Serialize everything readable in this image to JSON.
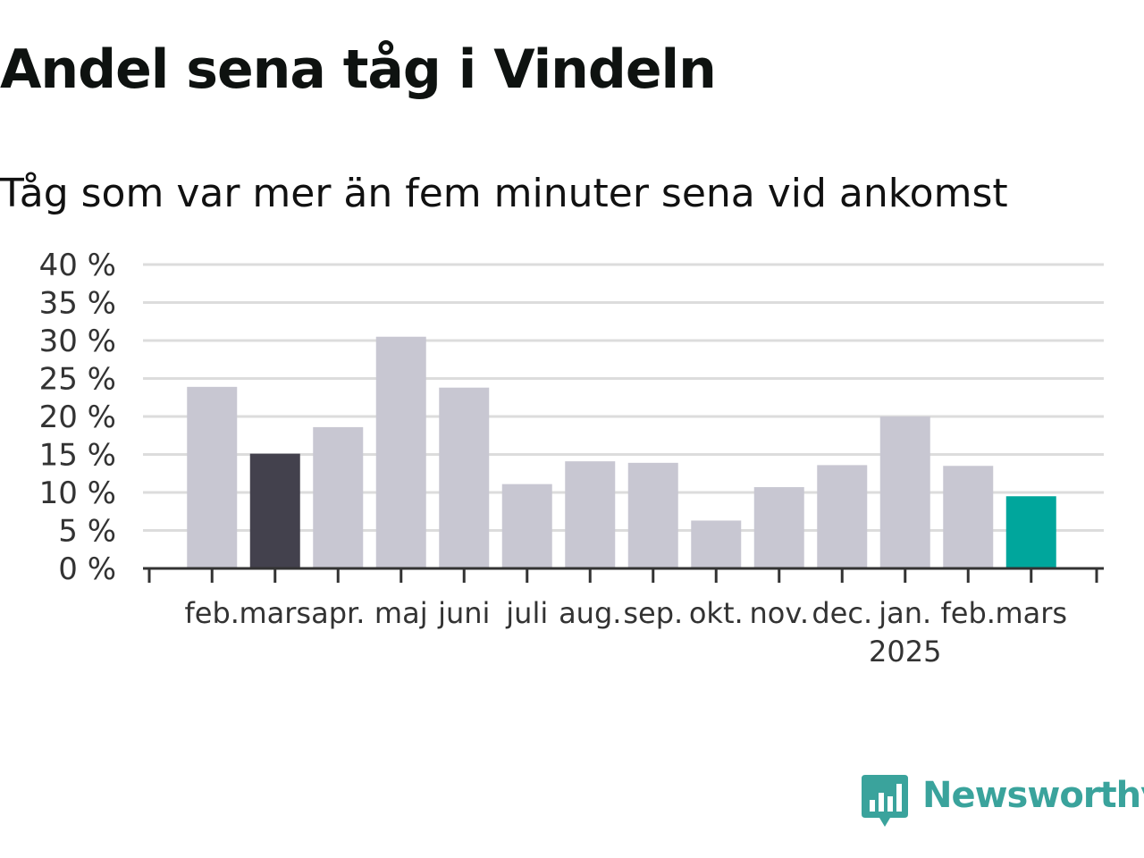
{
  "title": "Andel sena tåg i Vindeln",
  "subtitle": "Tåg som var mer än fem minuter sena vid ankomst",
  "brand": {
    "name": "Newsworthy",
    "icon": "bar-chart-speech-bubble-icon",
    "color": "#3aa39c"
  },
  "chart_data": {
    "type": "bar",
    "title": "Andel sena tåg i Vindeln",
    "subtitle": "Tåg som var mer än fem minuter sena vid ankomst",
    "categories": [
      "feb.",
      "mars",
      "apr.",
      "maj",
      "juni",
      "juli",
      "aug.",
      "sep.",
      "okt.",
      "nov.",
      "dec.",
      "jan.",
      "feb.",
      "mars"
    ],
    "values": [
      23.9,
      15.1,
      18.6,
      30.5,
      23.8,
      11.1,
      14.1,
      13.9,
      6.3,
      10.7,
      13.6,
      20.0,
      13.5,
      9.5
    ],
    "year_labels": [
      {
        "category_index": 11,
        "label": "2025"
      }
    ],
    "ylim": [
      0,
      40
    ],
    "yticks": [
      0,
      5,
      10,
      15,
      20,
      25,
      30,
      35,
      40
    ],
    "ytick_labels": [
      "0 %",
      "5 %",
      "10 %",
      "15 %",
      "20 %",
      "25 %",
      "30 %",
      "35 %",
      "40 %"
    ],
    "xlabel": "",
    "ylabel": "",
    "grid": true,
    "legend": "none",
    "colors": {
      "default": "#c8c7d2",
      "highlight_dark": "#43414d",
      "highlight_latest": "#00a69c",
      "gridline": "#dcdcdc",
      "axis": "#333333"
    },
    "highlight_indices": {
      "dark": [
        1
      ],
      "latest": [
        13
      ]
    }
  }
}
